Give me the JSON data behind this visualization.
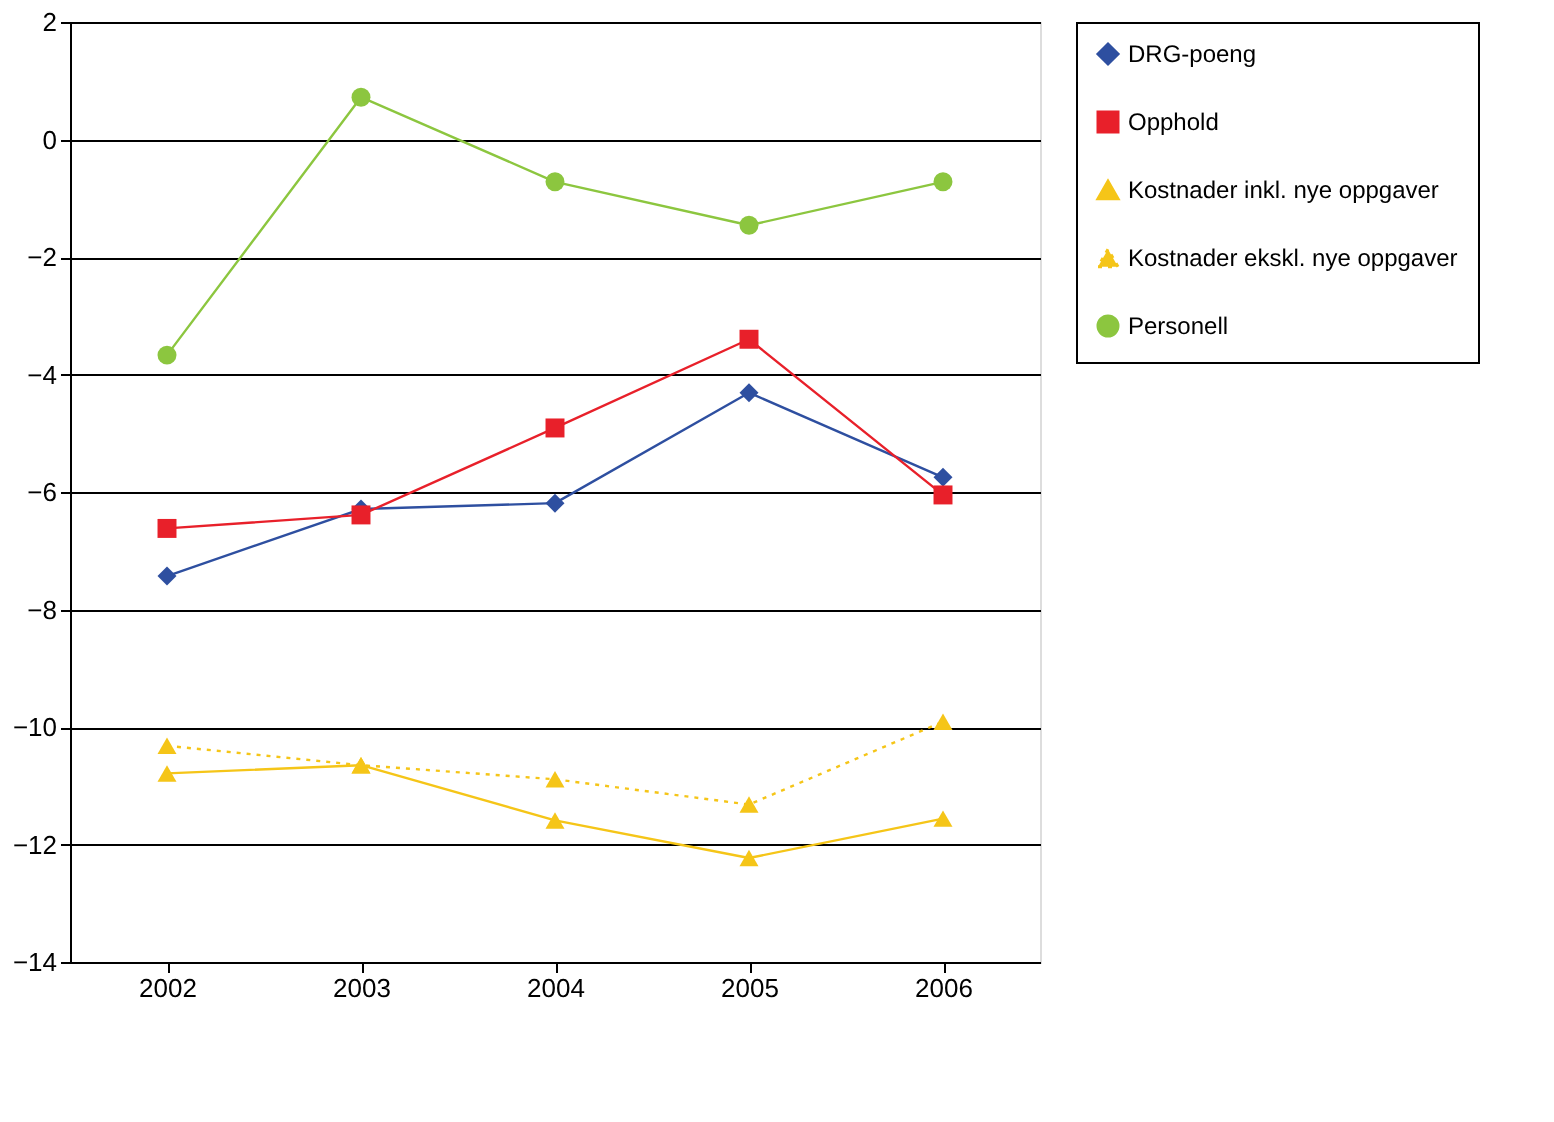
{
  "chart_data": {
    "type": "line",
    "categories": [
      "2002",
      "2003",
      "2004",
      "2005",
      "2006"
    ],
    "series": [
      {
        "name": "DRG-poeng",
        "color": "#2e4fa0",
        "marker": "diamond",
        "line_style": "solid",
        "values": [
          -7.43,
          -6.29,
          -6.19,
          -4.31,
          -5.75
        ]
      },
      {
        "name": "Opphold",
        "color": "#e8202a",
        "marker": "square",
        "line_style": "solid",
        "values": [
          -6.62,
          -6.39,
          -4.91,
          -3.4,
          -6.05
        ]
      },
      {
        "name": "Kostnader inkl. nye oppgaver",
        "color": "#f5c518",
        "marker": "triangle",
        "line_style": "solid",
        "values": [
          -10.79,
          -10.65,
          -11.59,
          -12.23,
          -11.56
        ]
      },
      {
        "name": "Kostnader ekskl. nye oppgaver",
        "color": "#f5c518",
        "marker": "triangle",
        "line_style": "dotted",
        "values": [
          -10.32,
          -10.65,
          -10.89,
          -11.32,
          -9.91
        ]
      },
      {
        "name": "Personell",
        "color": "#8cc63f",
        "marker": "circle",
        "line_style": "solid",
        "values": [
          -3.67,
          0.72,
          -0.72,
          -1.46,
          -0.72
        ]
      }
    ],
    "ylim": [
      -14,
      2
    ],
    "yticks": [
      -14,
      -12,
      -10,
      -8,
      -6,
      -4,
      -2,
      0,
      2
    ],
    "grid": "y",
    "legend": "right"
  }
}
